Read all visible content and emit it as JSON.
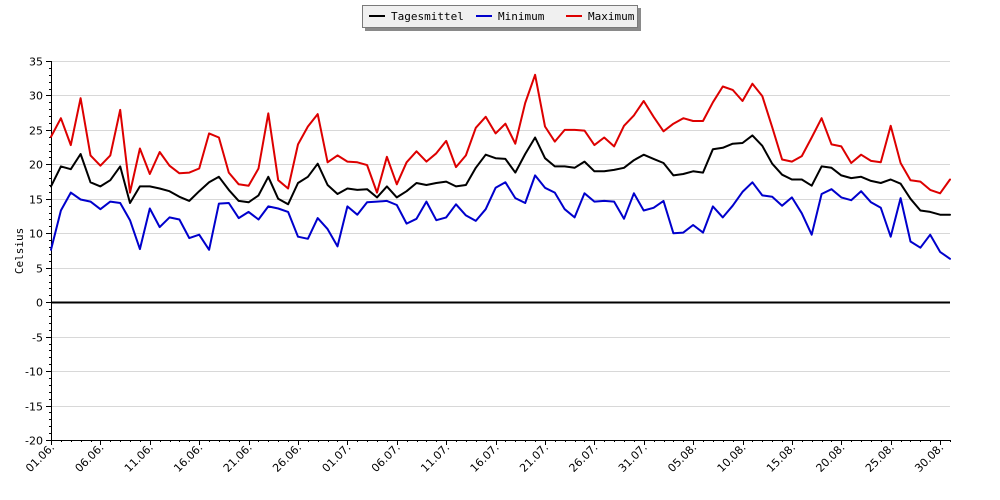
{
  "chart_data": {
    "type": "line",
    "ylabel": "Celsius",
    "ylim": [
      -20,
      35
    ],
    "yticks": [
      35,
      30,
      25,
      20,
      15,
      10,
      5,
      0,
      -5,
      -10,
      -15,
      -20
    ],
    "grid": "horizontal",
    "legend_position": "top-center",
    "x_tick_labels": [
      "01.06.",
      "06.06.",
      "11.06.",
      "16.06.",
      "21.06.",
      "26.06.",
      "01.07.",
      "06.07.",
      "11.07.",
      "16.07.",
      "21.07.",
      "26.07.",
      "31.07.",
      "05.08.",
      "10.08.",
      "15.08.",
      "20.08.",
      "25.08.",
      "30.08."
    ],
    "x_tick_every_days": 5,
    "series": [
      {
        "name": "Tagesmittel",
        "color": "#000000",
        "values": [
          16.8,
          19.7,
          19.3,
          21.5,
          17.4,
          16.8,
          17.7,
          19.7,
          14.4,
          16.8,
          16.8,
          16.5,
          16.1,
          15.3,
          14.7,
          16.1,
          17.4,
          18.2,
          16.3,
          14.7,
          14.5,
          15.5,
          18.2,
          15.0,
          14.2,
          17.3,
          18.2,
          20.1,
          17.0,
          15.7,
          16.5,
          16.3,
          16.4,
          15.2,
          16.8,
          15.2,
          16.1,
          17.3,
          17.0,
          17.3,
          17.5,
          16.8,
          17.0,
          19.5,
          21.4,
          20.9,
          20.8,
          18.8,
          21.5,
          23.9,
          20.9,
          19.7,
          19.7,
          19.5,
          20.4,
          19.0,
          19.0,
          19.2,
          19.5,
          20.6,
          21.4,
          20.8,
          20.2,
          18.4,
          18.6,
          19.0,
          18.8,
          22.2,
          22.4,
          23.0,
          23.1,
          24.2,
          22.7,
          20.1,
          18.5,
          17.8,
          17.8,
          16.9,
          19.7,
          19.5,
          18.4,
          18.0,
          18.2,
          17.6,
          17.3,
          17.8,
          17.2,
          15.0,
          13.3,
          13.1,
          12.7,
          12.7
        ]
      },
      {
        "name": "Minimum",
        "color": "#0000cc",
        "values": [
          7.6,
          13.3,
          15.9,
          14.9,
          14.6,
          13.5,
          14.6,
          14.4,
          11.9,
          7.7,
          13.6,
          10.9,
          12.3,
          12.0,
          9.3,
          9.8,
          7.6,
          14.3,
          14.4,
          12.2,
          13.1,
          12.0,
          13.9,
          13.6,
          13.1,
          9.5,
          9.2,
          12.2,
          10.6,
          8.1,
          13.9,
          12.7,
          14.5,
          14.6,
          14.7,
          14.1,
          11.4,
          12.1,
          14.6,
          11.9,
          12.3,
          14.2,
          12.6,
          11.8,
          13.5,
          16.6,
          17.4,
          15.1,
          14.4,
          18.4,
          16.6,
          15.9,
          13.5,
          12.3,
          15.8,
          14.6,
          14.7,
          14.6,
          12.1,
          15.8,
          13.3,
          13.7,
          14.7,
          10.0,
          10.1,
          11.2,
          10.1,
          13.9,
          12.3,
          14.0,
          16.0,
          17.4,
          15.5,
          15.3,
          14.0,
          15.2,
          12.9,
          9.8,
          15.7,
          16.4,
          15.2,
          14.8,
          16.1,
          14.5,
          13.7,
          9.5,
          15.1,
          8.8,
          7.9,
          9.8,
          7.3,
          6.3
        ]
      },
      {
        "name": "Maximum",
        "color": "#dd0000",
        "values": [
          24.0,
          26.7,
          22.8,
          29.6,
          21.3,
          19.8,
          21.3,
          27.9,
          15.9,
          22.3,
          18.6,
          21.8,
          19.8,
          18.7,
          18.8,
          19.4,
          24.5,
          23.9,
          18.8,
          17.1,
          16.9,
          19.4,
          27.4,
          17.7,
          16.5,
          22.9,
          25.5,
          27.3,
          20.3,
          21.3,
          20.4,
          20.3,
          19.9,
          15.9,
          21.1,
          17.1,
          20.3,
          21.9,
          20.4,
          21.6,
          23.4,
          19.6,
          21.3,
          25.3,
          26.9,
          24.5,
          25.9,
          23.0,
          28.9,
          33.0,
          25.5,
          23.3,
          25.0,
          25.0,
          24.9,
          22.8,
          23.9,
          22.6,
          25.6,
          27.1,
          29.2,
          26.9,
          24.8,
          25.9,
          26.7,
          26.3,
          26.3,
          29.0,
          31.3,
          30.8,
          29.2,
          31.7,
          29.9,
          25.4,
          20.7,
          20.4,
          21.2,
          23.9,
          26.7,
          22.9,
          22.6,
          20.2,
          21.4,
          20.5,
          20.3,
          25.6,
          20.2,
          17.7,
          17.5,
          16.3,
          15.8,
          17.8
        ]
      }
    ]
  }
}
